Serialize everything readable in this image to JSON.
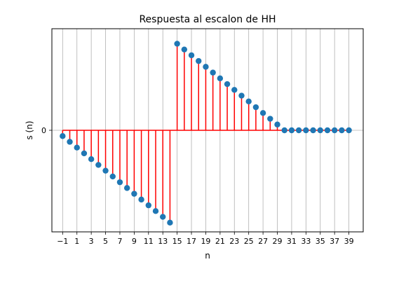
{
  "chart_data": {
    "type": "stem",
    "title": "Respuesta al escalon de HH",
    "xlabel": "n",
    "ylabel": "s (n)",
    "xlim": [
      -2.5,
      41
    ],
    "ylim": [
      -1.1,
      1.1
    ],
    "xticks": [
      -1,
      1,
      3,
      5,
      7,
      9,
      11,
      13,
      15,
      17,
      19,
      21,
      23,
      25,
      27,
      29,
      31,
      33,
      35,
      37,
      39
    ],
    "xtick_labels": [
      "−1",
      "1",
      "3",
      "5",
      "7",
      "9",
      "11",
      "13",
      "15",
      "17",
      "19",
      "21",
      "23",
      "25",
      "27",
      "29",
      "31",
      "33",
      "35",
      "37",
      "39"
    ],
    "yticks": [
      0
    ],
    "ytick_labels": [
      "0"
    ],
    "grid": "x",
    "colors": {
      "stem": "#ff0000",
      "marker": "#1f77b4",
      "baseline": "#ff0000",
      "grid": "#b0b0b0"
    },
    "x": [
      -1,
      0,
      1,
      2,
      3,
      4,
      5,
      6,
      7,
      8,
      9,
      10,
      11,
      12,
      13,
      14,
      15,
      16,
      17,
      18,
      19,
      20,
      21,
      22,
      23,
      24,
      25,
      26,
      27,
      28,
      29,
      30,
      31,
      32,
      33,
      34,
      35,
      36,
      37,
      38,
      39
    ],
    "y": [
      -0.0625,
      -0.125,
      -0.1875,
      -0.25,
      -0.3125,
      -0.375,
      -0.4375,
      -0.5,
      -0.5625,
      -0.625,
      -0.6875,
      -0.75,
      -0.8125,
      -0.875,
      -0.9375,
      -1.0,
      0.9375,
      0.875,
      0.8125,
      0.75,
      0.6875,
      0.625,
      0.5625,
      0.5,
      0.4375,
      0.375,
      0.3125,
      0.25,
      0.1875,
      0.125,
      0.0625,
      0,
      0,
      0,
      0,
      0,
      0,
      0,
      0,
      0,
      0
    ]
  }
}
